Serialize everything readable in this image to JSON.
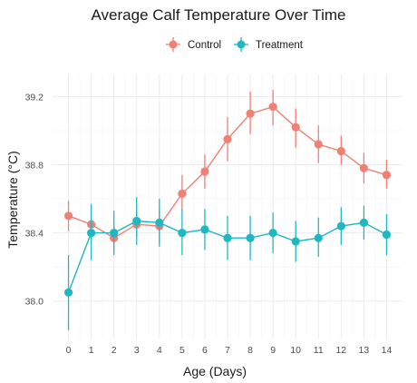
{
  "chart_data": {
    "type": "line",
    "title": "Average Calf Temperature Over Time",
    "xlabel": "Age (Days)",
    "ylabel": "Temperature (°C)",
    "x": [
      0,
      1,
      2,
      3,
      4,
      5,
      6,
      7,
      8,
      9,
      10,
      11,
      12,
      13,
      14
    ],
    "xlim": [
      -0.7,
      14.7
    ],
    "ylim": [
      37.78,
      39.33
    ],
    "yticks": [
      38.0,
      38.4,
      38.8,
      39.2
    ],
    "ytick_labels": [
      "38.0",
      "38.4",
      "38.8",
      "39.2"
    ],
    "xtick_labels": [
      "0",
      "1",
      "2",
      "3",
      "4",
      "5",
      "6",
      "7",
      "8",
      "9",
      "10",
      "11",
      "12",
      "13",
      "14"
    ],
    "grid": true,
    "legend_position": "top",
    "series": [
      {
        "name": "Control",
        "color": "#F07F74",
        "values": [
          38.5,
          38.45,
          38.37,
          38.45,
          38.44,
          38.63,
          38.76,
          38.95,
          39.1,
          39.14,
          39.02,
          38.92,
          38.88,
          38.78,
          38.74
        ],
        "error_low": [
          38.41,
          38.36,
          38.3,
          38.38,
          38.34,
          38.53,
          38.66,
          38.82,
          38.98,
          39.03,
          38.9,
          38.81,
          38.8,
          38.69,
          38.66
        ],
        "error_high": [
          38.59,
          38.54,
          38.44,
          38.52,
          38.54,
          38.74,
          38.86,
          39.08,
          39.23,
          39.24,
          39.13,
          39.03,
          38.97,
          38.87,
          38.83
        ]
      },
      {
        "name": "Treatment",
        "color": "#1FB8C1",
        "values": [
          38.05,
          38.4,
          38.4,
          38.47,
          38.46,
          38.4,
          38.42,
          38.37,
          38.37,
          38.4,
          38.35,
          38.37,
          38.44,
          38.46,
          38.39
        ],
        "error_low": [
          37.83,
          38.24,
          38.27,
          38.33,
          38.32,
          38.27,
          38.3,
          38.24,
          38.24,
          38.28,
          38.23,
          38.26,
          38.33,
          38.36,
          38.27
        ],
        "error_high": [
          38.27,
          38.57,
          38.53,
          38.61,
          38.6,
          38.54,
          38.54,
          38.5,
          38.5,
          38.52,
          38.47,
          38.49,
          38.55,
          38.56,
          38.51
        ]
      }
    ]
  }
}
